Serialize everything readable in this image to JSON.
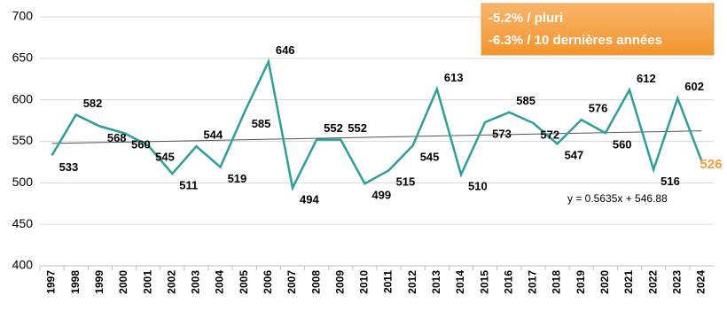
{
  "chart_data": {
    "type": "line",
    "categories": [
      "1997",
      "1998",
      "1999",
      "2000",
      "2001",
      "2002",
      "2003",
      "2004",
      "2005",
      "2006",
      "2007",
      "2008",
      "2009",
      "2010",
      "2011",
      "2012",
      "2013",
      "2014",
      "2015",
      "2016",
      "2017",
      "2018",
      "2019",
      "2020",
      "2021",
      "2022",
      "2023",
      "2024"
    ],
    "values": [
      533,
      582,
      568,
      560,
      545,
      511,
      544,
      519,
      585,
      646,
      494,
      552,
      552,
      499,
      515,
      545,
      613,
      510,
      573,
      585,
      572,
      547,
      576,
      560,
      612,
      516,
      602,
      526
    ],
    "color": "#2e9e9a",
    "last_label_color": "#f59a3c",
    "ylim": [
      400,
      700
    ],
    "yticks": [
      400,
      450,
      500,
      550,
      600,
      650,
      700
    ],
    "grid": true,
    "trendline": {
      "slope": 0.5635,
      "intercept": 546.88,
      "label": "y = 0.5635x + 546.88",
      "color": "#555555"
    },
    "annotations": [
      "-5.2% / pluri",
      "-6.3% / 10 dernières années"
    ]
  }
}
